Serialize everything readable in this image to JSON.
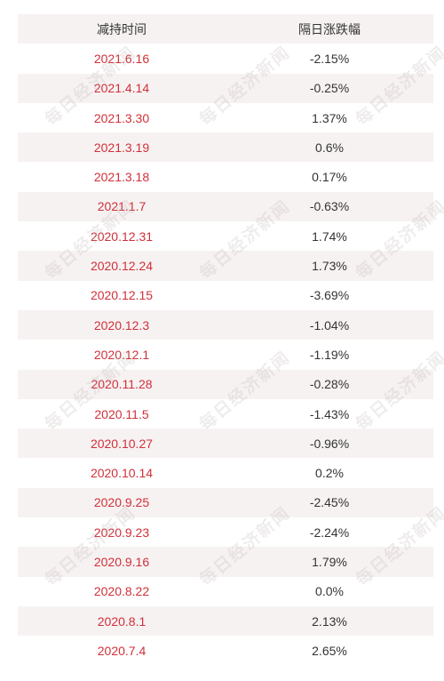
{
  "header": {
    "col_date": "减持时间",
    "col_change": "隔日涨跌幅"
  },
  "rows": [
    {
      "date": "2021.6.16",
      "change": "-2.15%"
    },
    {
      "date": "2021.4.14",
      "change": "-0.25%"
    },
    {
      "date": "2021.3.30",
      "change": "1.37%"
    },
    {
      "date": "2021.3.19",
      "change": "0.6%"
    },
    {
      "date": "2021.3.18",
      "change": "0.17%"
    },
    {
      "date": "2021.1.7",
      "change": "-0.63%"
    },
    {
      "date": "2020.12.31",
      "change": "1.74%"
    },
    {
      "date": "2020.12.24",
      "change": "1.73%"
    },
    {
      "date": "2020.12.15",
      "change": "-3.69%"
    },
    {
      "date": "2020.12.3",
      "change": "-1.04%"
    },
    {
      "date": "2020.12.1",
      "change": "-1.19%"
    },
    {
      "date": "2020.11.28",
      "change": "-0.28%"
    },
    {
      "date": "2020.11.5",
      "change": "-1.43%"
    },
    {
      "date": "2020.10.27",
      "change": "-0.96%"
    },
    {
      "date": "2020.10.14",
      "change": "0.2%"
    },
    {
      "date": "2020.9.25",
      "change": "-2.45%"
    },
    {
      "date": "2020.9.23",
      "change": "-2.24%"
    },
    {
      "date": "2020.9.16",
      "change": "1.79%"
    },
    {
      "date": "2020.8.22",
      "change": "0.0%"
    },
    {
      "date": "2020.8.1",
      "change": "2.13%"
    },
    {
      "date": "2020.7.4",
      "change": "2.65%"
    }
  ],
  "watermark": {
    "text": "每日经济新闻"
  },
  "colors": {
    "date_text": "#d0303a",
    "value_text": "#333333",
    "stripe": "#f7f2f2"
  }
}
